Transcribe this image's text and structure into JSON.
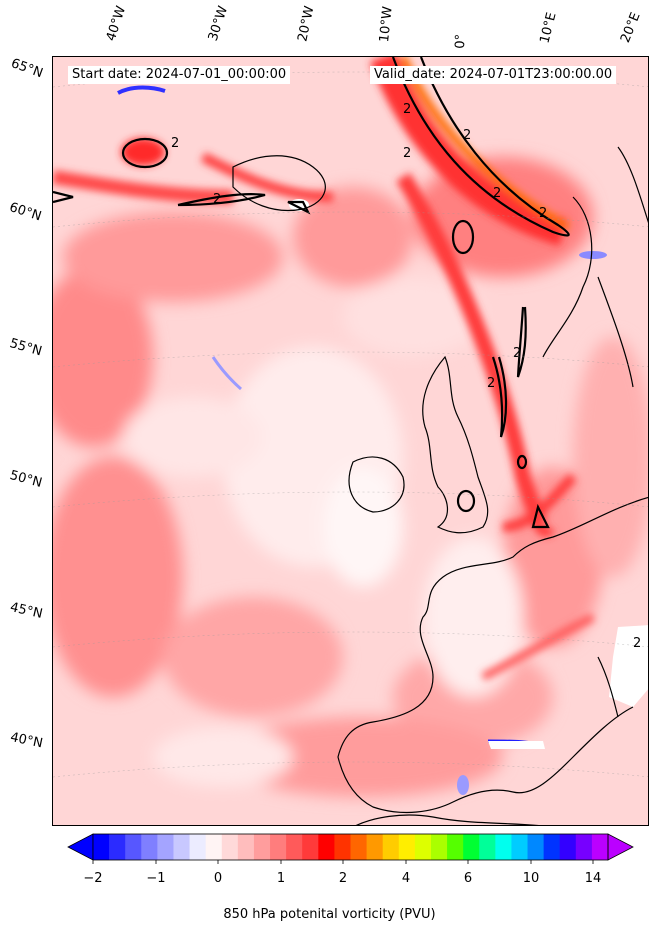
{
  "header": {
    "start_date": "Start date: 2024-07-01_00:00:00",
    "valid_date": "Valid_date: 2024-07-01T23:00:00.00"
  },
  "axes": {
    "longitudes": [
      "40°W",
      "30°W",
      "20°W",
      "10°W",
      "0°",
      "10°E",
      "20°E"
    ],
    "latitudes": [
      "65°N",
      "60°N",
      "55°N",
      "50°N",
      "45°N",
      "40°N"
    ]
  },
  "contour_label": "2",
  "colorbar": {
    "label": "850 hPa potenital vorticity (PVU)",
    "ticks": [
      "−2",
      "−1",
      "0",
      "1",
      "2",
      "4",
      "6",
      "10",
      "14"
    ],
    "colors": [
      "#0000ff",
      "#2b2bff",
      "#5757ff",
      "#7f7fff",
      "#a4a4ff",
      "#c8c8ff",
      "#ececff",
      "#fff4f4",
      "#ffd9d9",
      "#ffbdbd",
      "#ff9d9d",
      "#ff7d7d",
      "#ff5a5a",
      "#ff3a3a",
      "#ff0000",
      "#ff3300",
      "#ff6600",
      "#ff9900",
      "#ffcc00",
      "#ffee00",
      "#ddff00",
      "#aaff00",
      "#55ff00",
      "#00ff33",
      "#00ff99",
      "#00ffee",
      "#00ccff",
      "#0088ff",
      "#0033ff",
      "#3300ff",
      "#7700ff",
      "#bb00ff"
    ],
    "extend_low_color": "#0000ff",
    "extend_high_color": "#bb00ff"
  }
}
